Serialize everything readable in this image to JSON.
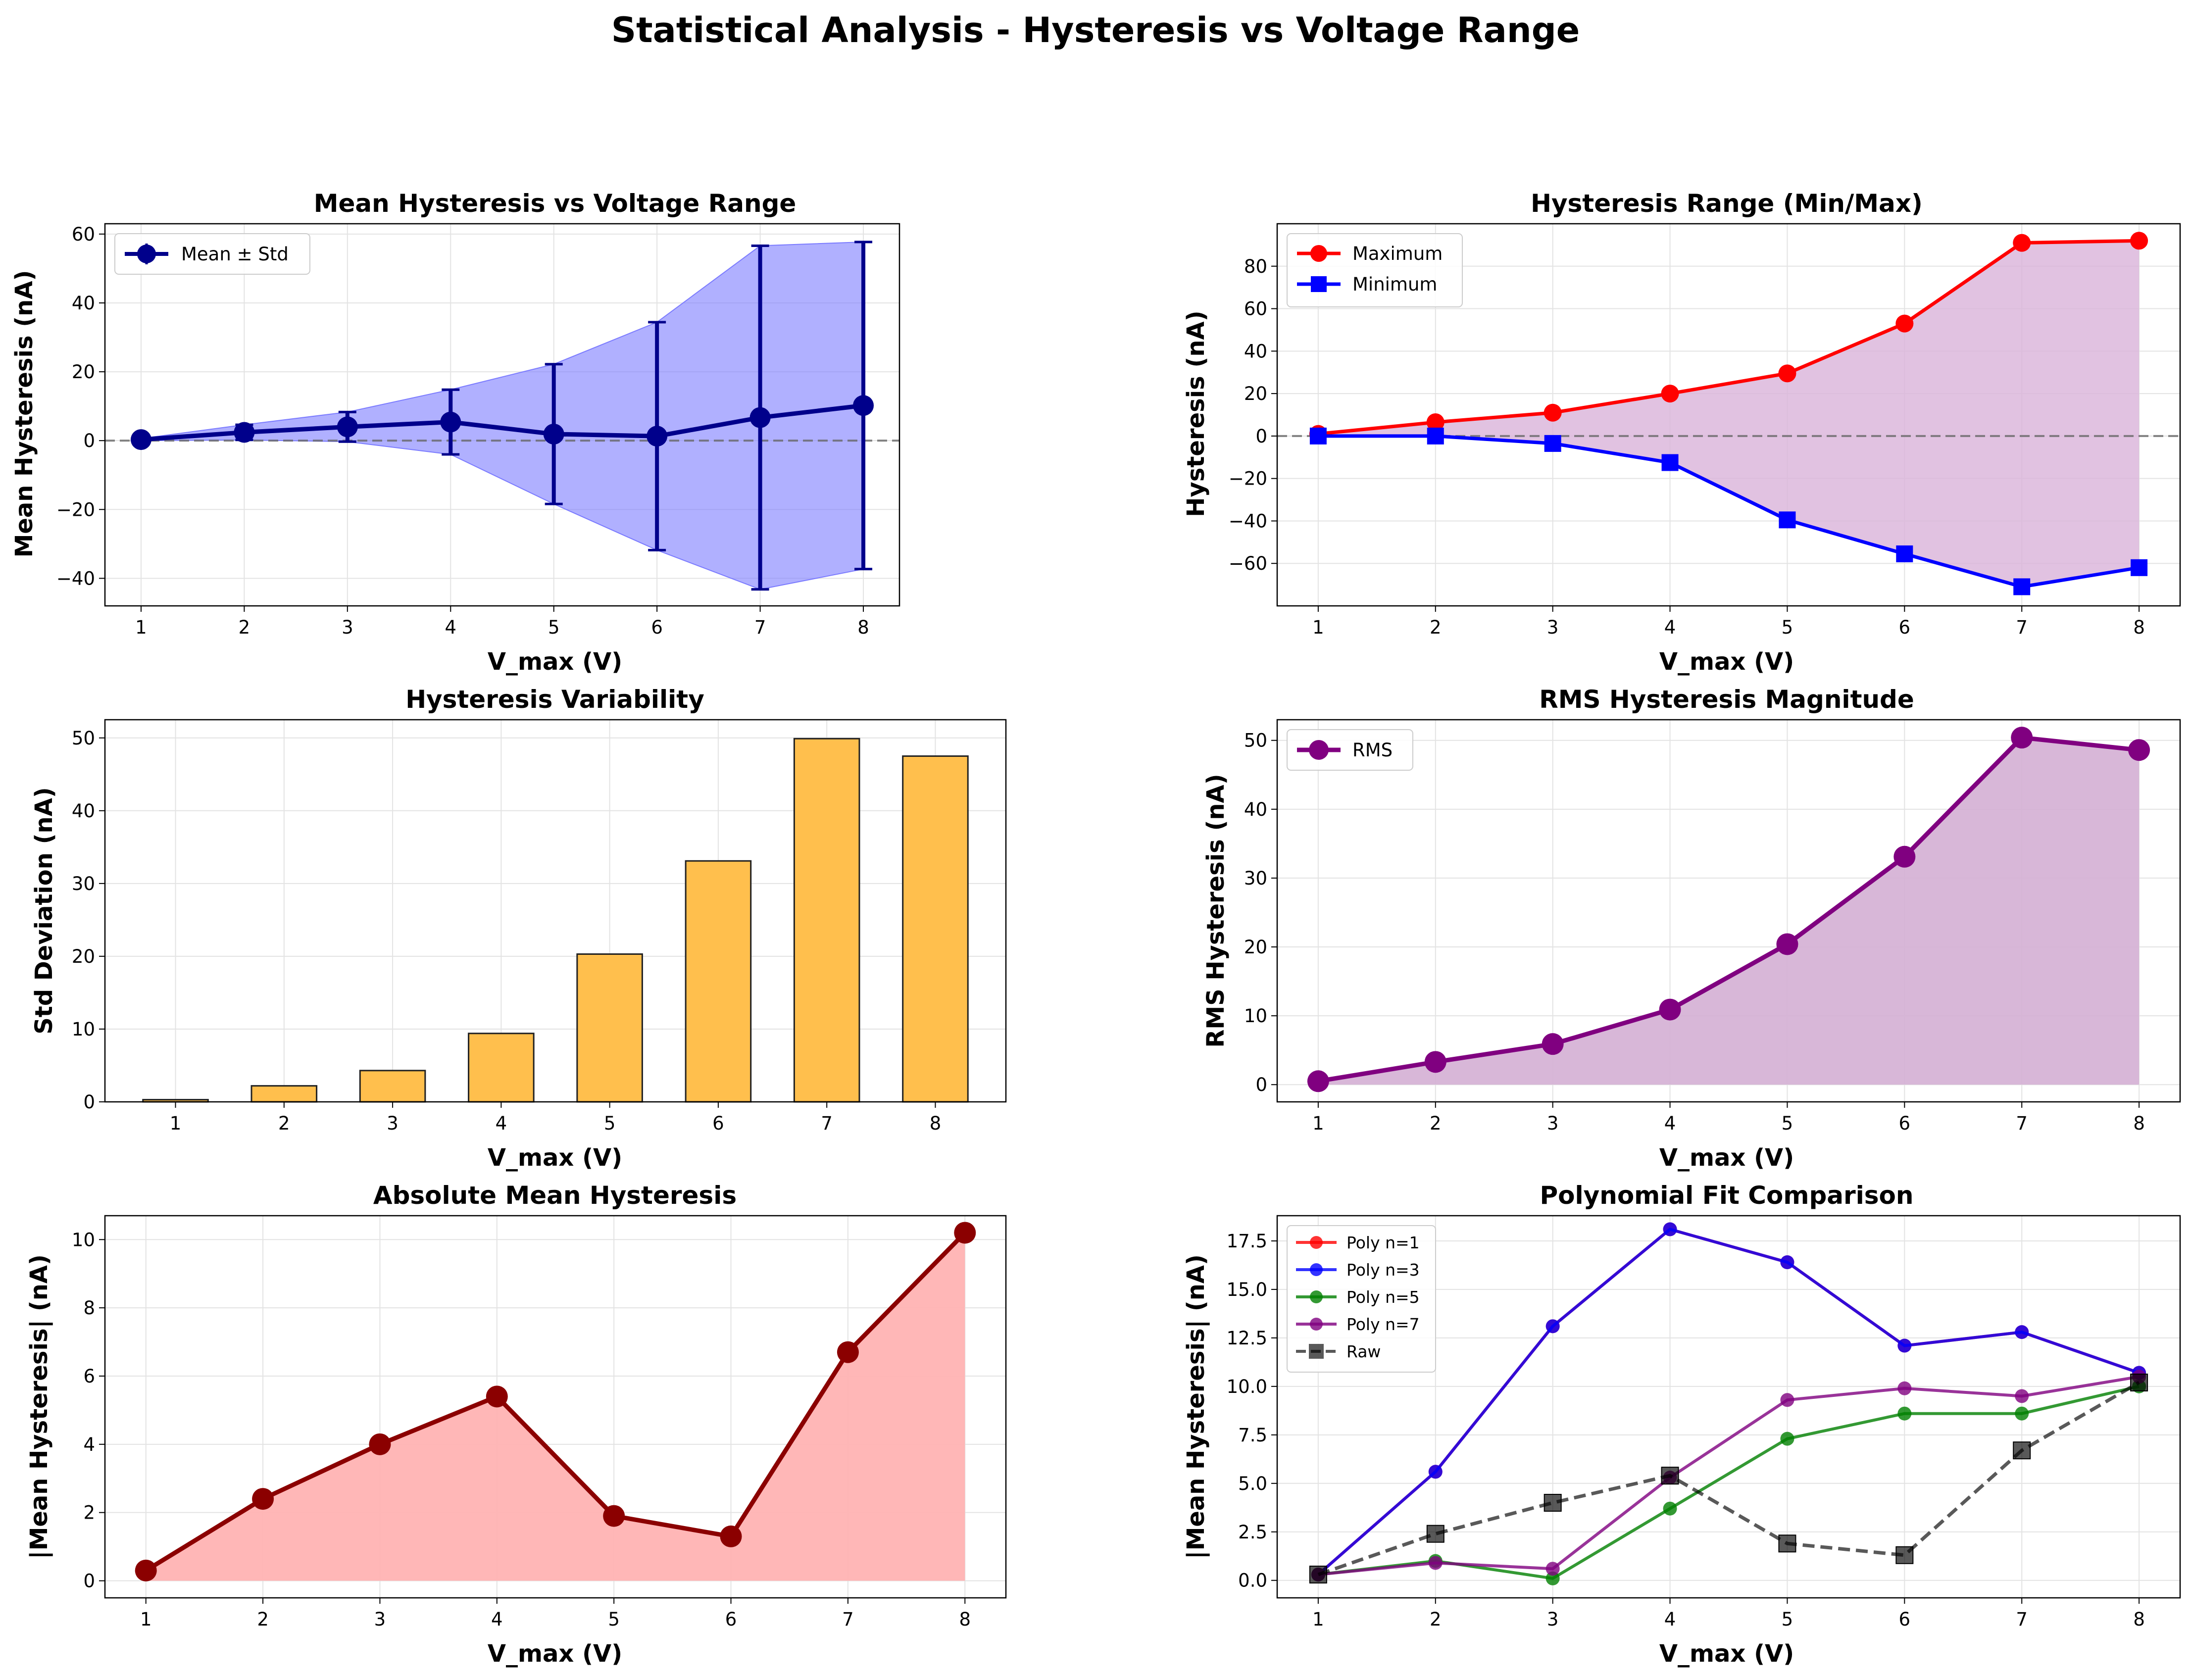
{
  "suptitle": "Statistical Analysis - Hysteresis vs Voltage Range",
  "panels": {
    "mean": {
      "title": "Mean Hysteresis vs Voltage Range",
      "xlabel": "V_max (V)",
      "ylabel": "Mean Hysteresis (nA)",
      "legend": [
        "Mean ± Std"
      ]
    },
    "range": {
      "title": "Hysteresis Range (Min/Max)",
      "xlabel": "V_max (V)",
      "ylabel": "Hysteresis (nA)",
      "legend": [
        "Maximum",
        "Minimum"
      ]
    },
    "std": {
      "title": "Hysteresis Variability",
      "xlabel": "V_max (V)",
      "ylabel": "Std Deviation (nA)"
    },
    "rms": {
      "title": "RMS Hysteresis Magnitude",
      "xlabel": "V_max (V)",
      "ylabel": "RMS Hysteresis (nA)",
      "legend": [
        "RMS"
      ]
    },
    "abs": {
      "title": "Absolute Mean Hysteresis",
      "xlabel": "V_max (V)",
      "ylabel": "|Mean Hysteresis| (nA)"
    },
    "poly": {
      "title": "Polynomial Fit Comparison",
      "xlabel": "V_max (V)",
      "ylabel": "|Mean Hysteresis| (nA)",
      "legend": [
        "Poly n=1",
        "Poly n=3",
        "Poly n=5",
        "Poly n=7",
        "Raw"
      ]
    }
  },
  "chart_data": [
    {
      "type": "line",
      "title": "Mean Hysteresis vs Voltage Range",
      "xlabel": "V_max (V)",
      "ylabel": "Mean Hysteresis (nA)",
      "x": [
        1,
        2,
        3,
        4,
        5,
        6,
        7,
        8
      ],
      "series": [
        {
          "name": "Mean ± Std",
          "values": [
            0.3,
            2.4,
            4.0,
            5.4,
            1.9,
            1.3,
            6.7,
            10.2
          ],
          "std": [
            0.3,
            2.2,
            4.3,
            9.4,
            20.3,
            33.1,
            49.9,
            47.5
          ]
        }
      ],
      "xlim": [
        0.65,
        8.35
      ],
      "ylim": [
        -48,
        63
      ],
      "yticks": [
        -40,
        -20,
        0,
        20,
        40,
        60
      ],
      "colors": {
        "line": "#00008b",
        "fill": "#7b7bff"
      },
      "grid": true,
      "legend_position": "upper left"
    },
    {
      "type": "line",
      "title": "Hysteresis Range (Min/Max)",
      "xlabel": "V_max (V)",
      "ylabel": "Hysteresis (nA)",
      "x": [
        1,
        2,
        3,
        4,
        5,
        6,
        7,
        8
      ],
      "series": [
        {
          "name": "Maximum",
          "values": [
            1.0,
            6.5,
            11.0,
            20.0,
            29.5,
            53.0,
            91.0,
            92.0
          ],
          "color": "#ff0000"
        },
        {
          "name": "Minimum",
          "values": [
            0.0,
            0.0,
            -3.5,
            -12.5,
            -39.5,
            -55.5,
            -71.0,
            -62.0
          ],
          "color": "#0000ff"
        }
      ],
      "xlim": [
        0.65,
        8.35
      ],
      "ylim": [
        -80,
        100
      ],
      "yticks": [
        -60,
        -40,
        -20,
        0,
        20,
        40,
        60,
        80
      ],
      "fill_color": "#d9b3d9",
      "grid": true,
      "legend_position": "upper left"
    },
    {
      "type": "bar",
      "title": "Hysteresis Variability",
      "xlabel": "V_max (V)",
      "ylabel": "Std Deviation (nA)",
      "categories": [
        "1",
        "2",
        "3",
        "4",
        "5",
        "6",
        "7",
        "8"
      ],
      "values": [
        0.3,
        2.2,
        4.3,
        9.4,
        20.3,
        33.1,
        49.9,
        47.5
      ],
      "xlim": [
        0.35,
        8.65
      ],
      "ylim": [
        0,
        52.5
      ],
      "yticks": [
        0,
        10,
        20,
        30,
        40,
        50
      ],
      "color": "#ffbf4d",
      "grid": true
    },
    {
      "type": "area",
      "title": "RMS Hysteresis Magnitude",
      "xlabel": "V_max (V)",
      "ylabel": "RMS Hysteresis (nA)",
      "x": [
        1,
        2,
        3,
        4,
        5,
        6,
        7,
        8
      ],
      "series": [
        {
          "name": "RMS",
          "values": [
            0.5,
            3.3,
            5.9,
            10.9,
            20.4,
            33.1,
            50.4,
            48.6
          ],
          "color": "#800080"
        }
      ],
      "xlim": [
        0.65,
        8.35
      ],
      "ylim": [
        -2.5,
        53
      ],
      "yticks": [
        0,
        10,
        20,
        30,
        40,
        50
      ],
      "fill_color": "#d4afd4",
      "grid": true,
      "legend_position": "upper left"
    },
    {
      "type": "area",
      "title": "Absolute Mean Hysteresis",
      "xlabel": "V_max (V)",
      "ylabel": "|Mean Hysteresis| (nA)",
      "x": [
        1,
        2,
        3,
        4,
        5,
        6,
        7,
        8
      ],
      "series": [
        {
          "values": [
            0.3,
            2.4,
            4.0,
            5.4,
            1.9,
            1.3,
            6.7,
            10.2
          ],
          "color": "#8b0000"
        }
      ],
      "xlim": [
        0.65,
        8.35
      ],
      "ylim": [
        -0.5,
        10.7
      ],
      "yticks": [
        0,
        2,
        4,
        6,
        8,
        10
      ],
      "fill_color": "#ffb3b3",
      "grid": true
    },
    {
      "type": "line",
      "title": "Polynomial Fit Comparison",
      "xlabel": "V_max (V)",
      "ylabel": "|Mean Hysteresis| (nA)",
      "x": [
        1,
        2,
        3,
        4,
        5,
        6,
        7,
        8
      ],
      "series": [
        {
          "name": "Poly n=1",
          "values": [
            0.3,
            5.6,
            13.1,
            18.1,
            16.4,
            12.1,
            12.8,
            10.7
          ],
          "color": "#ff0000"
        },
        {
          "name": "Poly n=3",
          "values": [
            0.3,
            5.6,
            13.1,
            18.1,
            16.4,
            12.1,
            12.8,
            10.7
          ],
          "color": "#0000ff"
        },
        {
          "name": "Poly n=5",
          "values": [
            0.3,
            1.0,
            0.1,
            3.7,
            7.3,
            8.6,
            8.6,
            10.0
          ],
          "color": "#008000"
        },
        {
          "name": "Poly n=7",
          "values": [
            0.3,
            0.9,
            0.6,
            5.3,
            9.3,
            9.9,
            9.5,
            10.5
          ],
          "color": "#800080"
        },
        {
          "name": "Raw",
          "values": [
            0.3,
            2.4,
            4.0,
            5.4,
            1.9,
            1.3,
            6.7,
            10.2
          ],
          "color": "#000000"
        }
      ],
      "xlim": [
        0.65,
        8.35
      ],
      "ylim": [
        -0.9,
        18.8
      ],
      "yticks": [
        0.0,
        2.5,
        5.0,
        7.5,
        10.0,
        12.5,
        15.0,
        17.5
      ],
      "grid": true,
      "legend_position": "upper left"
    }
  ]
}
